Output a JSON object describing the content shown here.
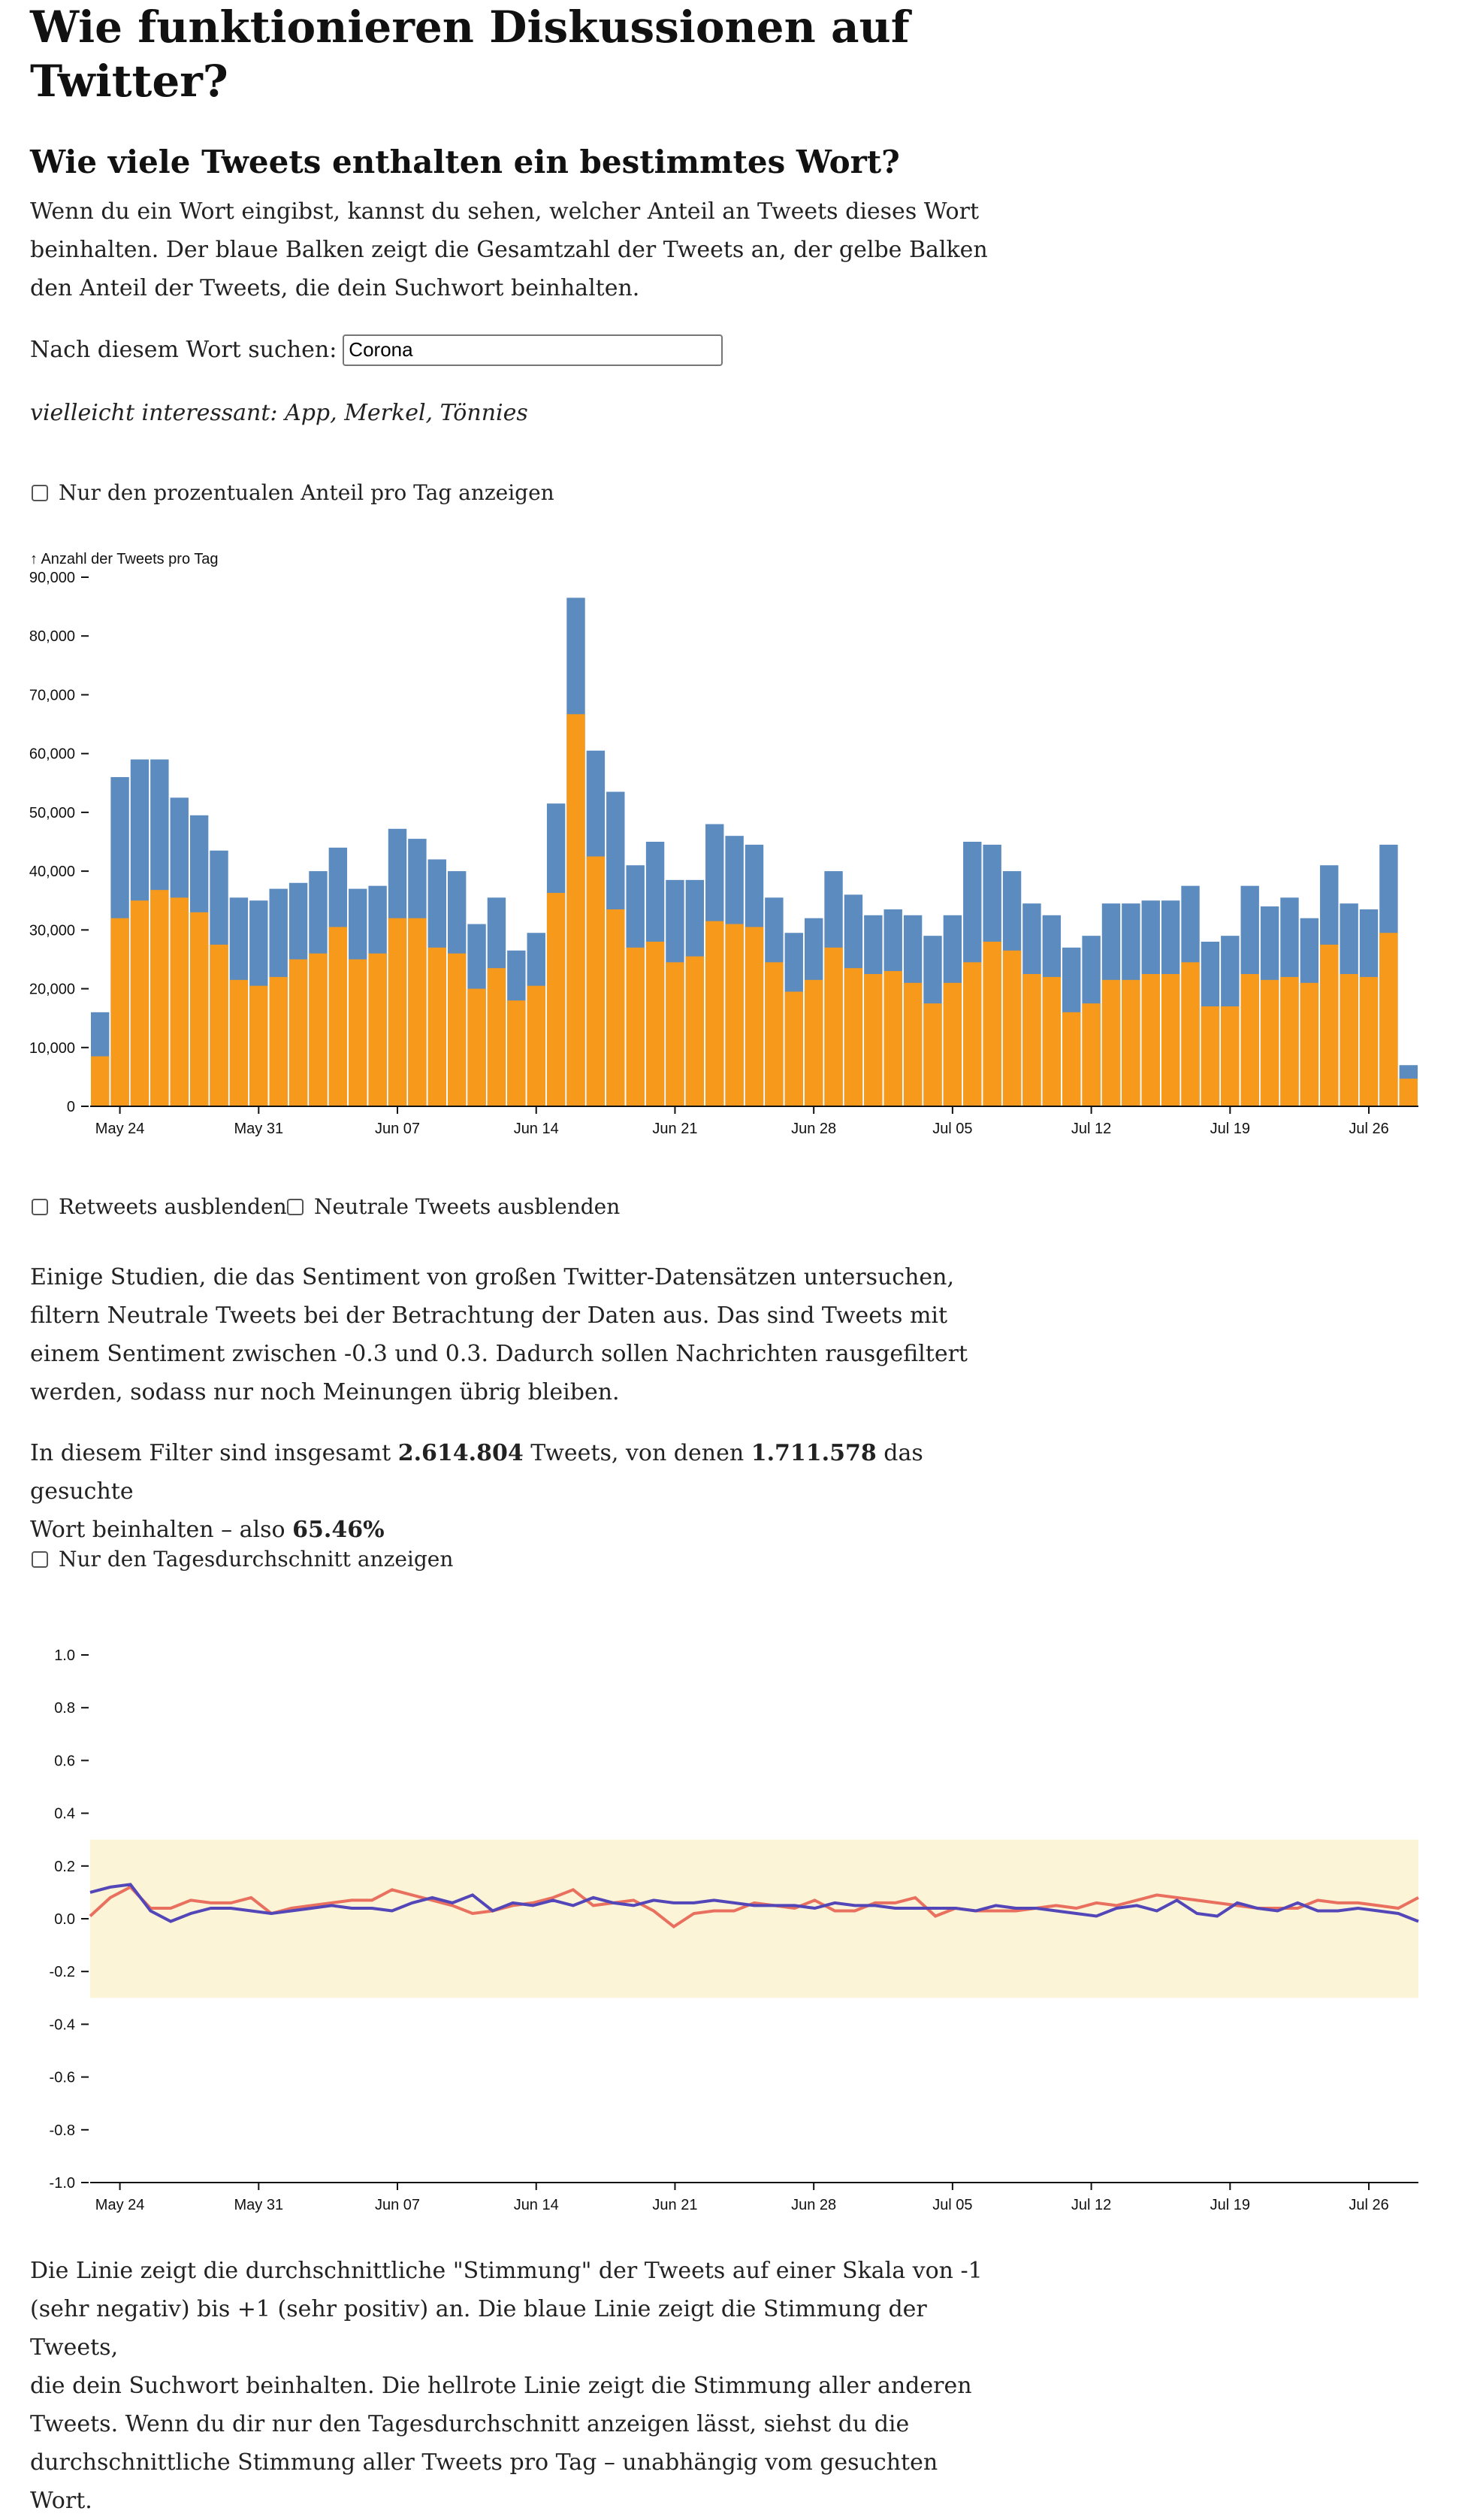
{
  "header": {
    "title_line1": "Wie funktionieren Diskussionen auf",
    "title_line2": "Twitter?",
    "subtitle": "Wie viele Tweets enthalten ein bestimmtes Wort?"
  },
  "intro": {
    "line1": "Wenn du ein Wort eingibst, kannst du sehen, welcher Anteil an Tweets dieses Wort",
    "line2": "beinhalten. Der blaue Balken zeigt die Gesamtzahl der Tweets an, der gelbe Balken",
    "line3": "den Anteil der Tweets, die dein Suchwort beinhalten."
  },
  "search": {
    "label": "Nach diesem Wort suchen:",
    "value": "Corona"
  },
  "suggestions": {
    "text": "vielleicht interessant: App, Merkel, Tönnies"
  },
  "checkboxes": {
    "percent_only": "Nur den prozentualen Anteil pro Tag anzeigen",
    "hide_retweets": "Retweets ausblenden",
    "hide_neutral": "Neutrale Tweets ausblenden",
    "daily_avg": "Nur den Tagesdurchschnitt anzeigen"
  },
  "filter_text": {
    "line1": "Einige Studien, die das Sentiment von großen Twitter-Datensätzen untersuchen,",
    "line2": "filtern Neutrale Tweets bei der Betrachtung der Daten aus. Das sind Tweets mit",
    "line3": "einem Sentiment zwischen -0.3 und 0.3. Dadurch sollen Nachrichten rausgefiltert",
    "line4": "werden, sodass nur noch Meinungen übrig bleiben."
  },
  "stats": {
    "prefix": "In diesem Filter sind insgesamt ",
    "total": "2.614.804",
    "middle": " Tweets, von denen ",
    "matching": "1.711.578",
    "suffix": " das gesuchte",
    "line2_prefix": "Wort beinhalten – also ",
    "percent": "65.46%"
  },
  "closing_text": {
    "line1": "Die Linie zeigt die durchschnittliche \"Stimmung\" der Tweets auf einer Skala von -1",
    "line2": "(sehr negativ) bis +1 (sehr positiv) an. Die blaue Linie zeigt die Stimmung der Tweets,",
    "line3": "die dein Suchwort beinhalten. Die hellrote Linie zeigt die Stimmung aller anderen",
    "line4": "Tweets. Wenn du dir nur den Tagesdurchschnitt anzeigen lässt, siehst du die",
    "line5": "durchschnittliche Stimmung aller Tweets pro Tag – unabhängig vom gesuchten",
    "line6": "Wort."
  },
  "chart_data": [
    {
      "type": "bar",
      "ylabel": "↑ Anzahl der Tweets pro Tag",
      "ylim": [
        0,
        90000
      ],
      "yticks": [
        "0",
        "10,000",
        "20,000",
        "30,000",
        "40,000",
        "50,000",
        "60,000",
        "70,000",
        "80,000",
        "90,000"
      ],
      "ytick_values": [
        0,
        10000,
        20000,
        30000,
        40000,
        50000,
        60000,
        70000,
        80000,
        90000
      ],
      "xtick_labels": [
        "May 24",
        "May 31",
        "Jun 07",
        "Jun 14",
        "Jun 21",
        "Jun 28",
        "Jul 05",
        "Jul 12",
        "Jul 19",
        "Jul 26"
      ],
      "xtick_day_index": [
        1,
        8,
        15,
        22,
        29,
        36,
        43,
        50,
        57,
        64
      ],
      "colors": {
        "total": "#5b8bbf",
        "matching": "#f79a1c"
      },
      "series": [
        {
          "key": "total",
          "values": [
            16000,
            56000,
            59000,
            59000,
            52500,
            49500,
            43500,
            35500,
            35000,
            37000,
            38000,
            40000,
            44000,
            37000,
            37500,
            47200,
            45500,
            42000,
            40000,
            31000,
            35500,
            26500,
            29500,
            51500,
            86500,
            60500,
            53500,
            41000,
            45000,
            38500,
            38500,
            48000,
            46000,
            44500,
            35500,
            29500,
            32000,
            40000,
            36000,
            32500,
            33500,
            32500,
            29000,
            32500,
            45000,
            44500,
            40000,
            34500,
            32500,
            27000,
            29000,
            34500,
            34500,
            35000,
            35000,
            37500,
            28000,
            29000,
            37500,
            34000,
            35500,
            32000,
            41000,
            34500,
            33500,
            44500,
            7000
          ]
        },
        {
          "key": "matching",
          "values": [
            8500,
            32000,
            35000,
            36800,
            35500,
            33000,
            27500,
            21500,
            20500,
            22000,
            25000,
            26000,
            30500,
            25000,
            26000,
            32000,
            32000,
            27000,
            26000,
            20000,
            23500,
            18000,
            20500,
            36300,
            66700,
            42500,
            33500,
            27000,
            28000,
            24500,
            25500,
            31500,
            31000,
            30500,
            24500,
            19500,
            21500,
            27000,
            23500,
            22500,
            23000,
            21000,
            17500,
            21000,
            24500,
            28000,
            26500,
            22500,
            22000,
            16000,
            17500,
            21500,
            21500,
            22500,
            22500,
            24500,
            17000,
            17000,
            22500,
            21500,
            22000,
            21000,
            27500,
            22500,
            22000,
            29500,
            4700
          ]
        }
      ]
    },
    {
      "type": "line",
      "ylim": [
        -1.0,
        1.0
      ],
      "yticks": [
        "-1.0",
        "-0.8",
        "-0.6",
        "-0.4",
        "-0.2",
        "0.0",
        "0.2",
        "0.4",
        "0.6",
        "0.8",
        "1.0"
      ],
      "ytick_values": [
        -1.0,
        -0.8,
        -0.6,
        -0.4,
        -0.2,
        0.0,
        0.2,
        0.4,
        0.6,
        0.8,
        1.0
      ],
      "xtick_labels": [
        "May 24",
        "May 31",
        "Jun 07",
        "Jun 14",
        "Jun 21",
        "Jun 28",
        "Jul 05",
        "Jul 12",
        "Jul 19",
        "Jul 26"
      ],
      "xtick_day_index": [
        1,
        8,
        15,
        22,
        29,
        36,
        43,
        50,
        57,
        64
      ],
      "neutral_band": [
        -0.3,
        0.3
      ],
      "colors": {
        "band": "#fbf4d6",
        "blue": "#5346b8",
        "red": "#e9705f"
      },
      "series": [
        {
          "key": "blue",
          "values": [
            0.1,
            0.12,
            0.13,
            0.03,
            -0.01,
            0.02,
            0.04,
            0.04,
            0.03,
            0.02,
            0.03,
            0.04,
            0.05,
            0.04,
            0.04,
            0.03,
            0.06,
            0.08,
            0.06,
            0.09,
            0.03,
            0.06,
            0.05,
            0.07,
            0.05,
            0.08,
            0.06,
            0.05,
            0.07,
            0.06,
            0.06,
            0.07,
            0.06,
            0.05,
            0.05,
            0.05,
            0.04,
            0.06,
            0.05,
            0.05,
            0.04,
            0.04,
            0.04,
            0.04,
            0.03,
            0.05,
            0.04,
            0.04,
            0.03,
            0.02,
            0.01,
            0.04,
            0.05,
            0.03,
            0.07,
            0.02,
            0.01,
            0.06,
            0.04,
            0.03,
            0.06,
            0.03,
            0.03,
            0.04,
            0.03,
            0.02,
            -0.01
          ]
        },
        {
          "key": "red",
          "values": [
            0.01,
            0.08,
            0.12,
            0.04,
            0.04,
            0.07,
            0.06,
            0.06,
            0.08,
            0.02,
            0.04,
            0.05,
            0.06,
            0.07,
            0.07,
            0.11,
            0.09,
            0.07,
            0.05,
            0.02,
            0.03,
            0.05,
            0.06,
            0.08,
            0.11,
            0.05,
            0.06,
            0.07,
            0.03,
            -0.03,
            0.02,
            0.03,
            0.03,
            0.06,
            0.05,
            0.04,
            0.07,
            0.03,
            0.03,
            0.06,
            0.06,
            0.08,
            0.01,
            0.04,
            0.03,
            0.03,
            0.03,
            0.04,
            0.05,
            0.04,
            0.06,
            0.05,
            0.07,
            0.09,
            0.08,
            0.07,
            0.06,
            0.05,
            0.04,
            0.04,
            0.04,
            0.07,
            0.06,
            0.06,
            0.05,
            0.04,
            0.08
          ]
        }
      ]
    }
  ]
}
